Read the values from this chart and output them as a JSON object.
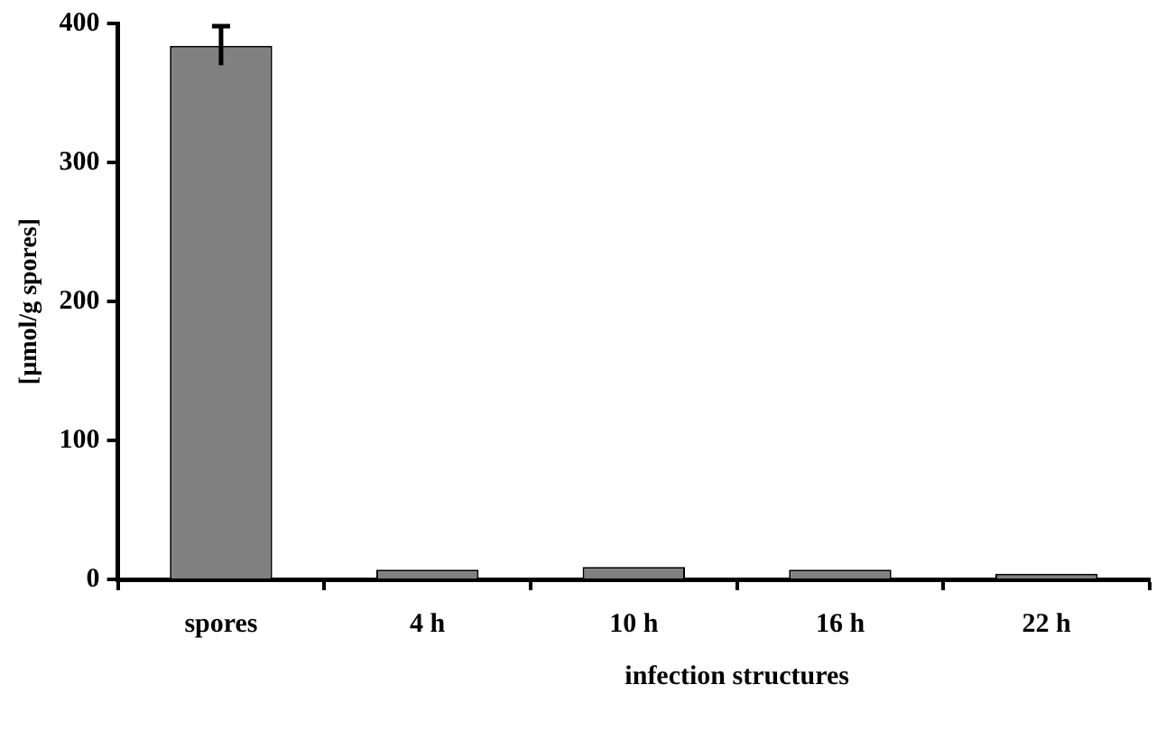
{
  "chart_data": {
    "type": "bar",
    "ylabel": "[µmol/g spores]",
    "xlabel": "infection structures",
    "categories": [
      "spores",
      "4 h",
      "10 h",
      "16 h",
      "22 h"
    ],
    "values": [
      384,
      7,
      9,
      7,
      4
    ],
    "errors": [
      14,
      null,
      null,
      null,
      null
    ],
    "color": "#808080",
    "ylim": [
      0,
      400
    ],
    "yticks": [
      0,
      100,
      200,
      300,
      400
    ],
    "grid": false,
    "legend": false
  }
}
